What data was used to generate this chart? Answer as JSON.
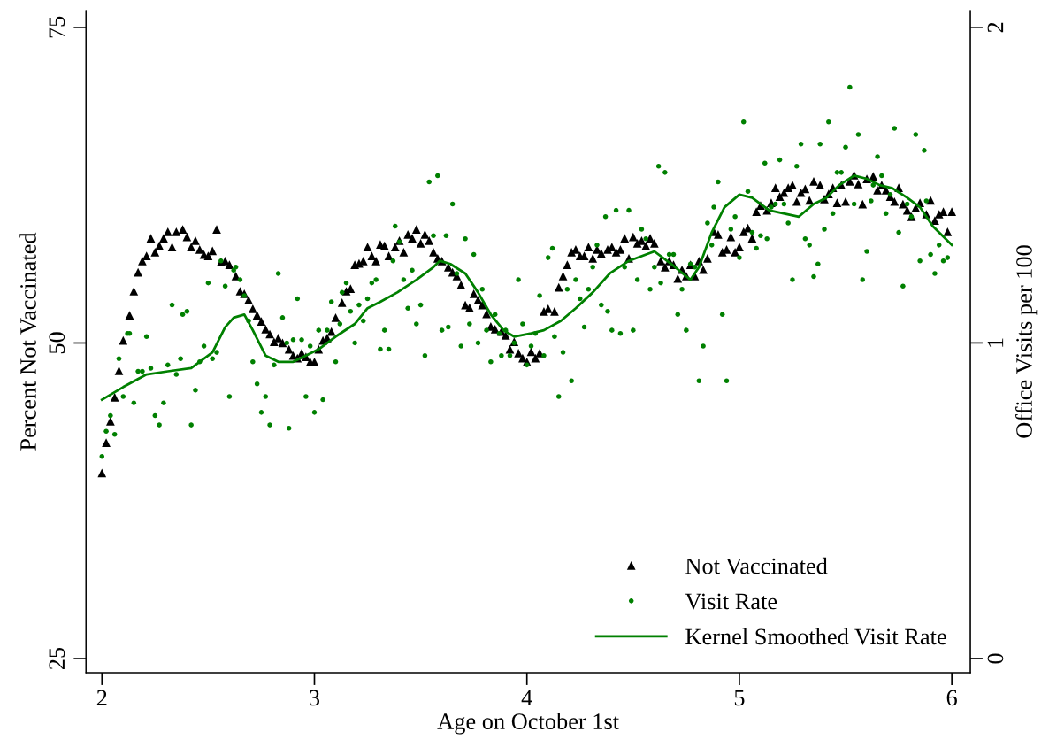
{
  "chart_data": {
    "type": "scatter",
    "xlabel": "Age on October 1st",
    "ylabel": "Percent Not Vaccinated",
    "y2label": "Office Visits per 100",
    "xlim": [
      1.925,
      6.087
    ],
    "xticks": [
      2,
      3,
      4,
      5,
      6
    ],
    "ylim": [
      23.88,
      76.33
    ],
    "yticks": [
      25,
      50,
      75
    ],
    "y2lim": [
      -0.045,
      2.053
    ],
    "y2ticks": [
      0,
      1,
      2
    ],
    "grid": false,
    "legend": "bottom right",
    "series": [
      {
        "name": "Not Vaccinated",
        "marker": "triangle",
        "color": "#000000",
        "x": [
          2.0,
          2.02,
          2.04,
          2.06,
          2.08,
          2.1,
          2.13,
          2.15,
          2.17,
          2.19,
          2.21,
          2.23,
          2.25,
          2.27,
          2.29,
          2.31,
          2.33,
          2.35,
          2.38,
          2.4,
          2.42,
          2.44,
          2.46,
          2.48,
          2.5,
          2.52,
          2.54,
          2.56,
          2.58,
          2.6,
          2.63,
          2.65,
          2.67,
          2.69,
          2.71,
          2.73,
          2.75,
          2.77,
          2.79,
          2.81,
          2.83,
          2.85,
          2.88,
          2.9,
          2.92,
          2.94,
          2.96,
          2.98,
          3.0,
          3.02,
          3.04,
          3.06,
          3.08,
          3.1,
          3.13,
          3.15,
          3.17,
          3.19,
          3.21,
          3.23,
          3.25,
          3.27,
          3.29,
          3.31,
          3.33,
          3.35,
          3.38,
          3.4,
          3.42,
          3.44,
          3.46,
          3.48,
          3.5,
          3.52,
          3.54,
          3.56,
          3.58,
          3.6,
          3.63,
          3.65,
          3.67,
          3.69,
          3.71,
          3.73,
          3.75,
          3.77,
          3.79,
          3.81,
          3.83,
          3.85,
          3.88,
          3.9,
          3.92,
          3.94,
          3.96,
          3.98,
          4.0,
          4.02,
          4.04,
          4.06,
          4.08,
          4.1,
          4.13,
          4.15,
          4.17,
          4.19,
          4.21,
          4.23,
          4.25,
          4.27,
          4.29,
          4.31,
          4.33,
          4.35,
          4.38,
          4.4,
          4.42,
          4.44,
          4.46,
          4.48,
          4.5,
          4.52,
          4.54,
          4.56,
          4.58,
          4.6,
          4.63,
          4.65,
          4.67,
          4.69,
          4.71,
          4.73,
          4.75,
          4.77,
          4.79,
          4.81,
          4.83,
          4.85,
          4.88,
          4.9,
          4.92,
          4.94,
          4.96,
          4.98,
          5.0,
          5.02,
          5.04,
          5.06,
          5.08,
          5.1,
          5.13,
          5.15,
          5.17,
          5.19,
          5.21,
          5.23,
          5.25,
          5.27,
          5.29,
          5.31,
          5.33,
          5.35,
          5.38,
          5.4,
          5.42,
          5.44,
          5.46,
          5.48,
          5.5,
          5.52,
          5.54,
          5.56,
          5.58,
          5.6,
          5.63,
          5.65,
          5.67,
          5.69,
          5.71,
          5.73,
          5.75,
          5.77,
          5.79,
          5.81,
          5.83,
          5.85,
          5.88,
          5.9,
          5.92,
          5.94,
          5.96,
          5.98,
          6.0
        ],
        "values": [
          39.7,
          42.1,
          43.8,
          45.7,
          47.8,
          50.2,
          52.2,
          54.1,
          55.6,
          56.5,
          56.9,
          58.3,
          57.2,
          57.7,
          58.3,
          58.8,
          57.6,
          58.8,
          59.0,
          58.4,
          57.6,
          58.1,
          57.4,
          57.0,
          56.9,
          57.3,
          59.0,
          56.4,
          56.5,
          56.2,
          55.3,
          54.1,
          53.9,
          53.4,
          52.7,
          52.2,
          51.7,
          51.1,
          50.7,
          50.1,
          50.4,
          50.0,
          49.5,
          49.0,
          48.8,
          49.2,
          48.9,
          48.5,
          48.5,
          49.5,
          50.2,
          50.4,
          50.9,
          52.0,
          53.2,
          54.1,
          54.3,
          56.2,
          56.3,
          56.5,
          57.6,
          56.9,
          56.5,
          57.8,
          57.7,
          56.9,
          57.6,
          58.1,
          57.2,
          58.6,
          58.3,
          59.0,
          57.9,
          58.6,
          58.1,
          57.2,
          56.7,
          56.5,
          56.0,
          55.6,
          55.3,
          54.6,
          53.0,
          52.8,
          53.9,
          53.4,
          53.0,
          52.3,
          51.3,
          51.1,
          50.9,
          50.6,
          49.5,
          50.1,
          49.2,
          48.8,
          48.5,
          49.3,
          48.8,
          49.2,
          52.5,
          52.7,
          52.5,
          54.4,
          55.3,
          56.2,
          57.2,
          57.4,
          56.9,
          56.9,
          57.6,
          56.7,
          57.4,
          57.1,
          57.4,
          57.6,
          57.2,
          57.4,
          58.3,
          56.7,
          58.4,
          57.9,
          58.1,
          57.7,
          58.3,
          57.9,
          56.5,
          56.0,
          56.5,
          56.2,
          55.1,
          55.8,
          55.3,
          56.2,
          55.3,
          56.5,
          55.8,
          56.7,
          58.8,
          58.6,
          57.2,
          57.4,
          58.4,
          57.2,
          57.6,
          58.8,
          59.1,
          58.3,
          60.4,
          60.9,
          60.5,
          61.1,
          62.3,
          61.6,
          61.9,
          62.3,
          62.5,
          61.2,
          61.9,
          62.2,
          61.3,
          62.8,
          62.5,
          61.4,
          61.8,
          62.3,
          61.1,
          62.5,
          61.2,
          62.8,
          63.3,
          62.6,
          61.0,
          63.0,
          63.2,
          62.1,
          62.5,
          62.1,
          61.6,
          61.2,
          62.3,
          61.0,
          60.5,
          60.0,
          60.7,
          61.1,
          60.2,
          61.3,
          59.7,
          60.2,
          60.4,
          58.8,
          60.4
        ]
      },
      {
        "name": "Visit Rate",
        "type": "scatter",
        "marker": "circle",
        "color": "#008000",
        "axis": "y2",
        "x": [
          2.0,
          2.02,
          2.04,
          2.06,
          2.08,
          2.1,
          2.12,
          2.13,
          2.15,
          2.17,
          2.19,
          2.21,
          2.23,
          2.25,
          2.27,
          2.29,
          2.31,
          2.33,
          2.35,
          2.37,
          2.38,
          2.4,
          2.42,
          2.44,
          2.46,
          2.48,
          2.5,
          2.52,
          2.54,
          2.56,
          2.58,
          2.6,
          2.62,
          2.63,
          2.65,
          2.67,
          2.69,
          2.71,
          2.73,
          2.75,
          2.77,
          2.79,
          2.81,
          2.83,
          2.85,
          2.87,
          2.88,
          2.9,
          2.92,
          2.94,
          2.96,
          2.98,
          3.0,
          3.02,
          3.04,
          3.06,
          3.08,
          3.1,
          3.12,
          3.13,
          3.15,
          3.17,
          3.19,
          3.21,
          3.23,
          3.25,
          3.27,
          3.29,
          3.31,
          3.33,
          3.35,
          3.37,
          3.38,
          3.4,
          3.42,
          3.44,
          3.46,
          3.48,
          3.5,
          3.52,
          3.54,
          3.56,
          3.58,
          3.6,
          3.62,
          3.63,
          3.65,
          3.67,
          3.69,
          3.71,
          3.73,
          3.75,
          3.77,
          3.79,
          3.81,
          3.83,
          3.85,
          3.87,
          3.88,
          3.9,
          3.92,
          3.94,
          3.96,
          3.98,
          4.0,
          4.02,
          4.04,
          4.06,
          4.08,
          4.1,
          4.12,
          4.13,
          4.15,
          4.17,
          4.19,
          4.21,
          4.23,
          4.25,
          4.27,
          4.29,
          4.31,
          4.33,
          4.35,
          4.37,
          4.38,
          4.4,
          4.42,
          4.44,
          4.46,
          4.48,
          4.5,
          4.52,
          4.54,
          4.56,
          4.58,
          4.6,
          4.62,
          4.63,
          4.65,
          4.67,
          4.69,
          4.71,
          4.73,
          4.75,
          4.77,
          4.79,
          4.81,
          4.83,
          4.85,
          4.87,
          4.88,
          4.9,
          4.92,
          4.94,
          4.96,
          4.98,
          5.0,
          5.02,
          5.04,
          5.06,
          5.08,
          5.1,
          5.12,
          5.13,
          5.15,
          5.17,
          5.19,
          5.21,
          5.23,
          5.25,
          5.27,
          5.29,
          5.31,
          5.33,
          5.35,
          5.37,
          5.38,
          5.4,
          5.42,
          5.44,
          5.46,
          5.48,
          5.5,
          5.52,
          5.54,
          5.56,
          5.58,
          5.6,
          5.62,
          5.63,
          5.65,
          5.67,
          5.69,
          5.71,
          5.73,
          5.75,
          5.77,
          5.79,
          5.81,
          5.83,
          5.85,
          5.87,
          5.88,
          5.9,
          5.92,
          5.94,
          5.96,
          5.98
        ],
        "values": [
          0.64,
          0.72,
          0.77,
          0.71,
          0.95,
          0.83,
          1.03,
          1.03,
          0.81,
          0.91,
          0.91,
          1.02,
          0.92,
          0.77,
          0.74,
          0.81,
          0.93,
          1.12,
          0.9,
          0.95,
          1.09,
          1.1,
          0.74,
          0.85,
          0.94,
          0.99,
          1.19,
          0.95,
          0.97,
          1.26,
          1.18,
          0.83,
          1.23,
          1.24,
          1.2,
          1.15,
          1.07,
          0.94,
          0.87,
          0.78,
          0.83,
          0.74,
          0.93,
          1.22,
          1.08,
          1.0,
          0.73,
          1.01,
          1.14,
          1.01,
          0.83,
          0.99,
          0.78,
          1.04,
          0.82,
          1.04,
          1.13,
          0.94,
          1.06,
          1.16,
          1.19,
          1.1,
          1.0,
          1.12,
          1.07,
          1.14,
          1.19,
          1.2,
          0.98,
          1.04,
          0.98,
          1.26,
          1.37,
          1.32,
          1.2,
          1.11,
          1.23,
          1.06,
          1.12,
          0.96,
          1.51,
          1.34,
          1.53,
          1.04,
          1.34,
          1.05,
          1.44,
          1.22,
          0.99,
          1.33,
          1.06,
          1.28,
          1.0,
          1.17,
          1.04,
          0.94,
          1.09,
          1.03,
          0.96,
          1.04,
          0.96,
          1.0,
          1.2,
          1.06,
          0.93,
          0.99,
          1.03,
          1.15,
          0.96,
          1.27,
          1.3,
          1.02,
          0.83,
          0.97,
          1.17,
          0.88,
          1.2,
          1.14,
          1.05,
          1.17,
          1.24,
          1.31,
          1.12,
          1.4,
          1.1,
          1.04,
          1.42,
          1.03,
          1.24,
          1.42,
          1.04,
          1.2,
          1.36,
          1.33,
          1.17,
          1.24,
          1.56,
          1.19,
          1.54,
          1.28,
          1.28,
          1.09,
          1.17,
          1.04,
          1.25,
          1.24,
          0.88,
          0.99,
          1.38,
          1.31,
          1.43,
          1.51,
          1.09,
          0.88,
          1.36,
          1.4,
          1.27,
          1.7,
          1.48,
          1.35,
          1.3,
          1.34,
          1.57,
          1.33,
          1.43,
          1.44,
          1.58,
          1.44,
          1.38,
          1.2,
          1.56,
          1.63,
          1.33,
          1.31,
          1.21,
          1.25,
          1.63,
          1.36,
          1.7,
          1.41,
          1.54,
          1.54,
          1.62,
          1.81,
          1.44,
          1.66,
          1.2,
          1.29,
          1.45,
          1.5,
          1.59,
          1.53,
          1.41,
          1.47,
          1.68,
          1.35,
          1.18,
          1.44,
          1.4,
          1.66,
          1.26,
          1.61,
          1.45,
          1.28,
          1.22,
          1.31,
          1.26,
          1.27
        ]
      },
      {
        "name": "Kernel Smoothed Visit Rate",
        "type": "line",
        "marker": "none",
        "line_style": "solid",
        "color": "#008000",
        "axis": "y2",
        "x": [
          2.0,
          2.1,
          2.21,
          2.31,
          2.42,
          2.52,
          2.58,
          2.62,
          2.67,
          2.71,
          2.77,
          2.83,
          2.9,
          2.96,
          3.02,
          3.1,
          3.19,
          3.25,
          3.31,
          3.39,
          3.48,
          3.56,
          3.59,
          3.64,
          3.71,
          3.77,
          3.83,
          3.89,
          3.94,
          4.02,
          4.08,
          4.16,
          4.23,
          4.31,
          4.39,
          4.48,
          4.6,
          4.68,
          4.77,
          4.81,
          4.87,
          4.93,
          5.0,
          5.06,
          5.14,
          5.28,
          5.35,
          5.41,
          5.47,
          5.54,
          5.6,
          5.66,
          5.72,
          5.79,
          5.85,
          5.91,
          6.0
        ],
        "values": [
          0.82,
          0.86,
          0.9,
          0.91,
          0.92,
          0.97,
          1.05,
          1.08,
          1.09,
          1.04,
          0.96,
          0.94,
          0.94,
          0.96,
          0.98,
          1.02,
          1.06,
          1.11,
          1.13,
          1.16,
          1.2,
          1.24,
          1.26,
          1.25,
          1.22,
          1.16,
          1.09,
          1.04,
          1.02,
          1.03,
          1.04,
          1.07,
          1.11,
          1.16,
          1.22,
          1.26,
          1.29,
          1.25,
          1.2,
          1.24,
          1.35,
          1.43,
          1.47,
          1.46,
          1.42,
          1.4,
          1.44,
          1.46,
          1.5,
          1.53,
          1.52,
          1.5,
          1.49,
          1.46,
          1.43,
          1.37,
          1.31
        ]
      }
    ]
  }
}
